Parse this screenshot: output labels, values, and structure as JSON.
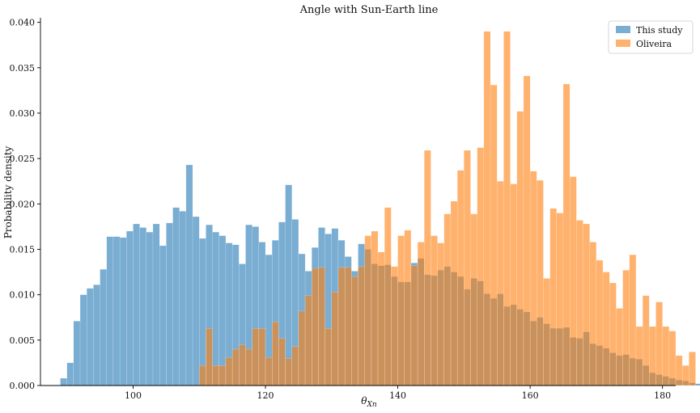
{
  "chart_data": {
    "type": "bar",
    "title": "Angle with Sun-Earth line",
    "xlabel": "θ",
    "xlabel_sub": "Xn",
    "ylabel": "Probability density",
    "xlim": [
      86,
      182
    ],
    "ylim": [
      0,
      0.0405
    ],
    "xticks": [
      100,
      120,
      140,
      160,
      180
    ],
    "yticks": [
      0.0,
      0.005,
      0.01,
      0.015,
      0.02,
      0.025,
      0.03,
      0.035,
      0.04
    ],
    "ytick_labels": [
      "0.000",
      "0.005",
      "0.010",
      "0.015",
      "0.020",
      "0.025",
      "0.030",
      "0.035",
      "0.040"
    ],
    "grid": false,
    "legend_position": "top-right",
    "series": [
      {
        "name": "This study",
        "color": "#1f77b4",
        "bin_start": 89,
        "bin_width": 1,
        "values": [
          0.0008,
          0.0025,
          0.0071,
          0.01,
          0.0107,
          0.0111,
          0.0128,
          0.0164,
          0.0164,
          0.0163,
          0.017,
          0.0178,
          0.0174,
          0.0169,
          0.0178,
          0.0154,
          0.0179,
          0.0196,
          0.0192,
          0.0243,
          0.0186,
          0.0162,
          0.0177,
          0.0169,
          0.0165,
          0.0157,
          0.0155,
          0.0134,
          0.0177,
          0.0175,
          0.0158,
          0.0144,
          0.016,
          0.018,
          0.0221,
          0.0183,
          0.0145,
          0.0126,
          0.0152,
          0.0174,
          0.0167,
          0.0173,
          0.016,
          0.0142,
          0.0126,
          0.0156,
          0.015,
          0.0134,
          0.0132,
          0.0133,
          0.012,
          0.0114,
          0.0114,
          0.0135,
          0.014,
          0.0122,
          0.0121,
          0.0127,
          0.0131,
          0.0125,
          0.012,
          0.0106,
          0.0118,
          0.0115,
          0.0101,
          0.0096,
          0.0101,
          0.0087,
          0.0089,
          0.0084,
          0.0081,
          0.0071,
          0.0075,
          0.0068,
          0.0063,
          0.0063,
          0.0064,
          0.0053,
          0.0052,
          0.0059,
          0.0046,
          0.0044,
          0.0041,
          0.0036,
          0.0033,
          0.0034,
          0.003,
          0.0029,
          0.0022,
          0.0014,
          0.0012,
          0.001,
          0.0008,
          0.0006,
          0.0005,
          0.0003,
          0.0002,
          0.0002,
          0.0008,
          0.0005
        ]
      },
      {
        "name": "Oliveira",
        "color": "#ff7f0e",
        "bin_start": 110,
        "bin_width": 1,
        "values": [
          0.0022,
          0.0063,
          0.0022,
          0.0022,
          0.0031,
          0.004,
          0.0045,
          0.004,
          0.0063,
          0.0063,
          0.0031,
          0.007,
          0.0052,
          0.003,
          0.0043,
          0.0082,
          0.0099,
          0.0129,
          0.013,
          0.0063,
          0.0103,
          0.013,
          0.013,
          0.012,
          0.0131,
          0.0165,
          0.017,
          0.0147,
          0.0196,
          0.0131,
          0.0165,
          0.0171,
          0.0132,
          0.0158,
          0.0259,
          0.0165,
          0.0157,
          0.0189,
          0.0203,
          0.0237,
          0.0259,
          0.0189,
          0.0262,
          0.039,
          0.0331,
          0.0225,
          0.039,
          0.0222,
          0.0302,
          0.0341,
          0.0236,
          0.0226,
          0.0118,
          0.0195,
          0.019,
          0.0332,
          0.023,
          0.0182,
          0.0178,
          0.0158,
          0.0138,
          0.0125,
          0.0113,
          0.0085,
          0.0127,
          0.0144,
          0.0065,
          0.0099,
          0.0065,
          0.0092,
          0.0065,
          0.006,
          0.0033,
          0.0022,
          0.0037
        ]
      }
    ]
  }
}
